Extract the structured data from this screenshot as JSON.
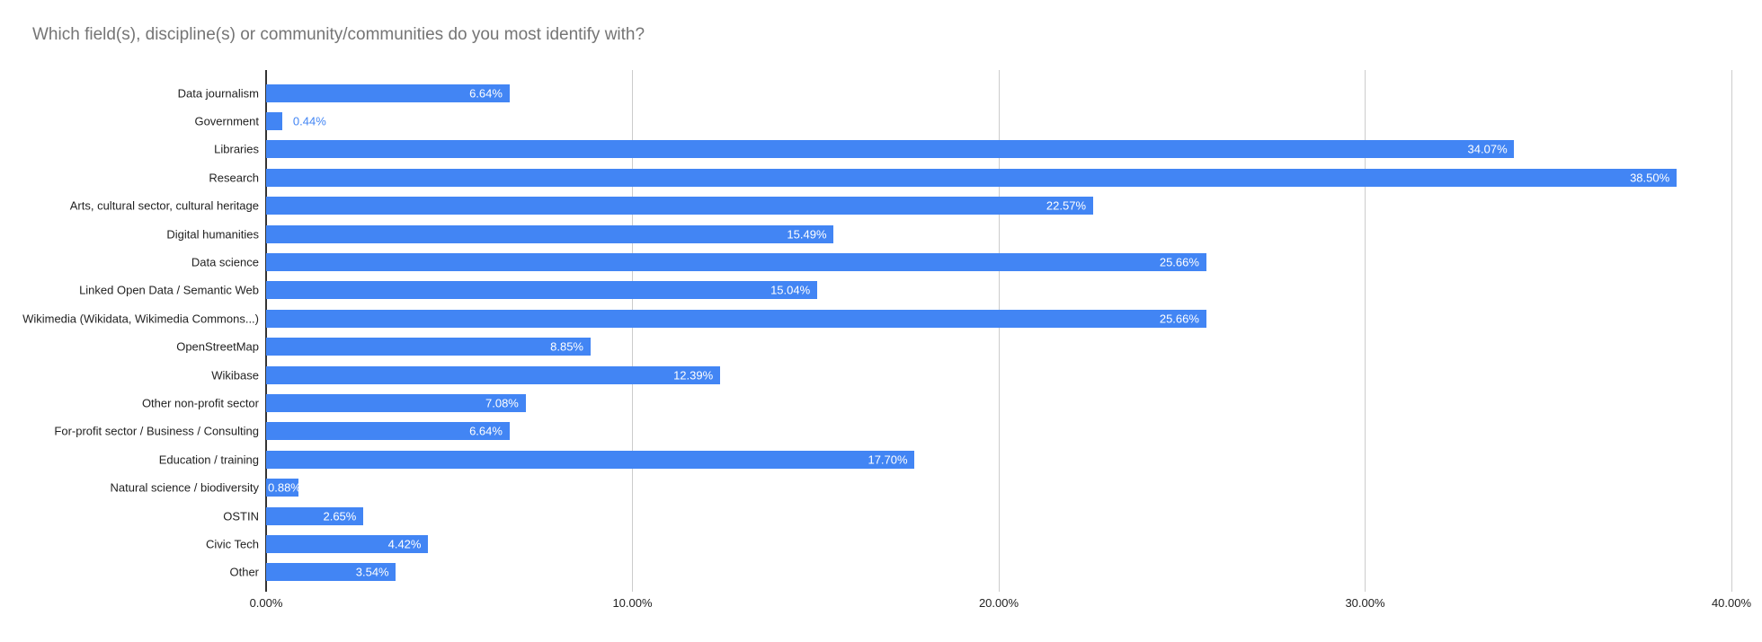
{
  "chart_data": {
    "type": "bar",
    "orientation": "horizontal",
    "title": "Which field(s), discipline(s) or community/communities do you most identify with?",
    "categories": [
      "Data journalism",
      "Government",
      "Libraries",
      "Research",
      "Arts, cultural sector, cultural heritage",
      "Digital humanities",
      "Data science",
      "Linked Open Data / Semantic Web",
      "Wikimedia (Wikidata, Wikimedia Commons...)",
      "OpenStreetMap",
      "Wikibase",
      "Other non-profit sector",
      "For-profit sector / Business / Consulting",
      "Education / training",
      "Natural science / biodiversity",
      "OSTIN",
      "Civic Tech",
      "Other"
    ],
    "values": [
      6.64,
      0.44,
      34.07,
      38.5,
      22.57,
      15.49,
      25.66,
      15.04,
      25.66,
      8.85,
      12.39,
      7.08,
      6.64,
      17.7,
      0.88,
      2.65,
      4.42,
      3.54
    ],
    "value_displays": [
      "6.64%",
      "0.44%",
      "34.07%",
      "38.50%",
      "22.57%",
      "15.49%",
      "25.66%",
      "15.04%",
      "25.66%",
      "8.85%",
      "12.39%",
      "7.08%",
      "6.64%",
      "17.70%",
      "0.88%",
      "2.65%",
      "4.42%",
      "3.54%"
    ],
    "xlim": [
      0,
      40
    ],
    "x_ticks": [
      {
        "value": 0,
        "label": "0.00%"
      },
      {
        "value": 10,
        "label": "10.00%"
      },
      {
        "value": 20,
        "label": "20.00%"
      },
      {
        "value": 30,
        "label": "30.00%"
      },
      {
        "value": 40,
        "label": "40.00%"
      }
    ],
    "grid": true,
    "legend_position": "none",
    "colors": {
      "bar": "#4285f4",
      "title_text": "#757575",
      "axis_text": "#222222",
      "gridline": "#cccccc",
      "baseline": "#333333",
      "value_label_inside": "#ffffff",
      "value_label_outside": "#4285f4",
      "background": "#ffffff"
    }
  }
}
